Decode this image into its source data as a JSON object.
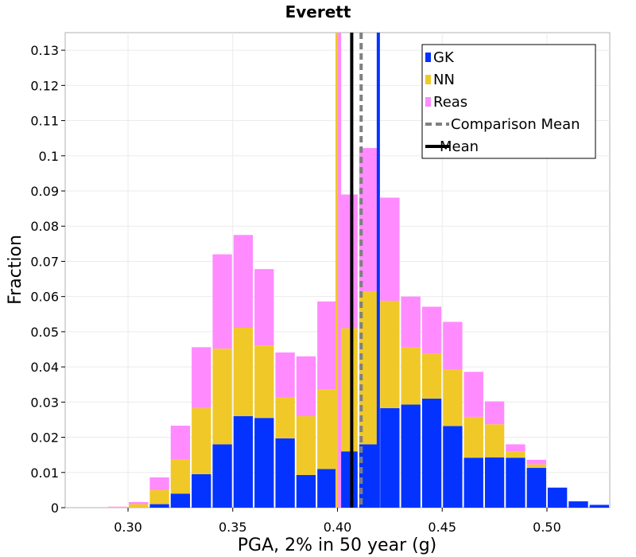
{
  "chart_data": {
    "type": "bar",
    "stacked": true,
    "title": "Everett",
    "xlabel": "PGA, 2% in 50 year (g)",
    "ylabel": "Fraction",
    "xlim": [
      0.27,
      0.53
    ],
    "ylim": [
      0,
      0.135
    ],
    "bin_width": 0.01,
    "x_ticks": [
      0.3,
      0.35,
      0.4,
      0.45,
      0.5
    ],
    "x_tick_labels": [
      "0.30",
      "0.35",
      "0.40",
      "0.45",
      "0.50"
    ],
    "y_ticks": [
      0,
      0.01,
      0.02,
      0.03,
      0.04,
      0.05,
      0.06,
      0.07,
      0.08,
      0.09,
      0.1,
      0.11,
      0.12,
      0.13
    ],
    "y_tick_labels": [
      "0",
      "0.01",
      "0.02",
      "0.03",
      "0.04",
      "0.05",
      "0.06",
      "0.07",
      "0.08",
      "0.09",
      "0.1",
      "0.11",
      "0.12",
      "0.13"
    ],
    "bin_starts": [
      0.27,
      0.28,
      0.29,
      0.3,
      0.31,
      0.32,
      0.33,
      0.34,
      0.35,
      0.36,
      0.37,
      0.38,
      0.39,
      0.4,
      0.41,
      0.42,
      0.43,
      0.44,
      0.45,
      0.46,
      0.47,
      0.48,
      0.49,
      0.5,
      0.51,
      0.52
    ],
    "series": [
      {
        "name": "GK",
        "color": "#0433ff",
        "values": [
          0,
          0,
          0,
          0,
          0.001,
          0.004,
          0.0095,
          0.018,
          0.026,
          0.0255,
          0.0197,
          0.0093,
          0.011,
          0.016,
          0.018,
          0.0283,
          0.0293,
          0.031,
          0.0232,
          0.0142,
          0.0143,
          0.0142,
          0.0113,
          0.0057,
          0.0018,
          0.0008
        ]
      },
      {
        "name": "NN",
        "color": "#f0c929",
        "values": [
          0,
          0,
          0.0002,
          0.001,
          0.004,
          0.0098,
          0.0188,
          0.0272,
          0.0251,
          0.0206,
          0.0116,
          0.0167,
          0.0226,
          0.035,
          0.0435,
          0.0305,
          0.0162,
          0.0127,
          0.016,
          0.0116,
          0.0094,
          0.0018,
          0.001,
          0,
          0,
          0
        ]
      },
      {
        "name": "Reas",
        "color": "#ff8bff",
        "values": [
          0,
          0,
          0.0001,
          0.0006,
          0.0036,
          0.0095,
          0.0173,
          0.0268,
          0.0264,
          0.0217,
          0.0128,
          0.017,
          0.025,
          0.038,
          0.0407,
          0.0293,
          0.0145,
          0.0134,
          0.0136,
          0.0128,
          0.0065,
          0.002,
          0.0013,
          0,
          0,
          0
        ]
      }
    ],
    "vertical_lines": [
      {
        "name": "NN mean",
        "x": 0.3998,
        "color": "#f0c929",
        "style": "solid"
      },
      {
        "name": "Mean",
        "x": 0.4068,
        "color": "#000000",
        "style": "solid"
      },
      {
        "name": "Comparison Mean",
        "x": 0.4113,
        "color": "#808080",
        "style": "dashed"
      },
      {
        "name": "GK mean",
        "x": 0.4195,
        "color": "#0433ff",
        "style": "solid"
      },
      {
        "name": "Reas mean",
        "x": 0.401,
        "color": "#ff8bff",
        "style": "solid"
      }
    ],
    "legend": {
      "position": "top-right",
      "entries": [
        {
          "label": "GK",
          "color": "#0433ff",
          "kind": "box"
        },
        {
          "label": "NN",
          "color": "#f0c929",
          "kind": "box"
        },
        {
          "label": "Reas",
          "color": "#ff8bff",
          "kind": "box"
        },
        {
          "label": "Comparison Mean",
          "color": "#808080",
          "kind": "dashed"
        },
        {
          "label": "Mean",
          "color": "#000000",
          "kind": "solid"
        }
      ]
    },
    "grid": true
  }
}
